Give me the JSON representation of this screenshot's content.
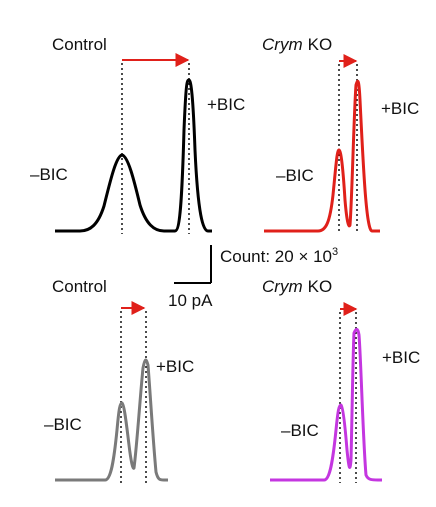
{
  "panels": [
    {
      "id": "top-left",
      "title": "Control",
      "title_italic": "",
      "color": "#000000",
      "minus_label": "–BIC",
      "plus_label": "+BIC",
      "arrow_color": "#e0201a"
    },
    {
      "id": "top-right",
      "title": "KO",
      "title_italic": "Crym",
      "color": "#e0201a",
      "minus_label": "–BIC",
      "plus_label": "+BIC",
      "arrow_color": "#e0201a"
    },
    {
      "id": "bottom-left",
      "title": "Control",
      "title_italic": "",
      "color": "#7a7a7a",
      "minus_label": "–BIC",
      "plus_label": "+BIC",
      "arrow_color": "#e0201a"
    },
    {
      "id": "bottom-right",
      "title": "KO",
      "title_italic": "Crym",
      "color": "#c436e0",
      "minus_label": "–BIC",
      "plus_label": "+BIC",
      "arrow_color": "#e0201a"
    }
  ],
  "scale_bar": {
    "count_label": "Count: 20 × 10",
    "count_exponent": "3",
    "current_label": "10 pA"
  }
}
